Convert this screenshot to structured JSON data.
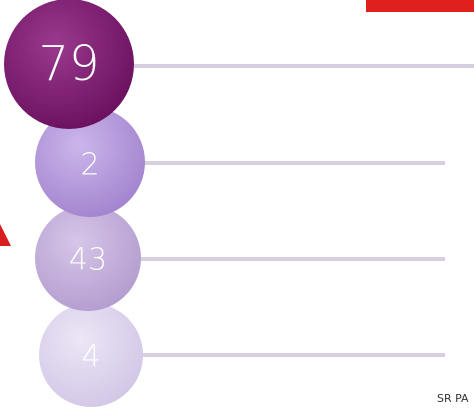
{
  "nodes": [
    {
      "label": "79"
    },
    {
      "label": "2"
    },
    {
      "label": "43"
    },
    {
      "label": "4"
    }
  ],
  "footer": "SR PA"
}
